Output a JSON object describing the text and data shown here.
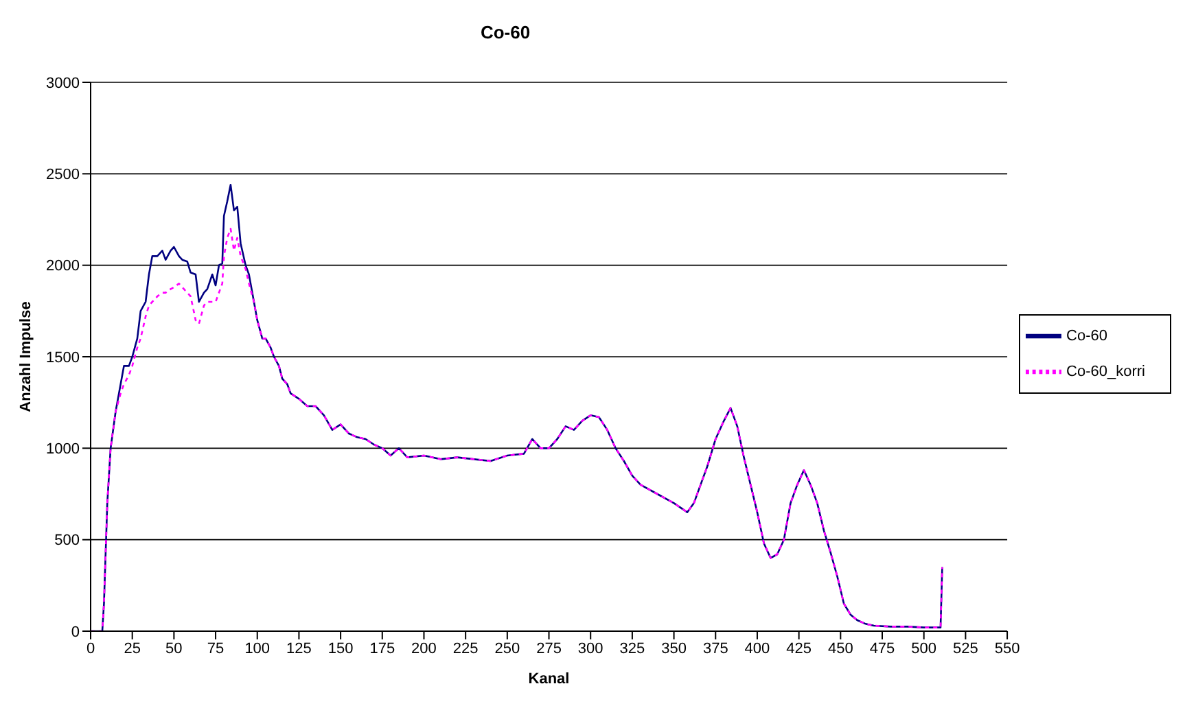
{
  "chart_data": {
    "type": "line",
    "title": "Co-60",
    "xlabel": "Kanal",
    "ylabel": "Anzahl Impulse",
    "x": [
      0,
      7,
      8,
      10,
      12,
      15,
      18,
      20,
      23,
      25,
      28,
      30,
      33,
      35,
      37,
      40,
      43,
      45,
      48,
      50,
      53,
      55,
      58,
      60,
      63,
      65,
      68,
      70,
      73,
      75,
      77,
      79,
      80,
      82,
      84,
      86,
      88,
      90,
      93,
      95,
      98,
      100,
      103,
      105,
      108,
      110,
      113,
      115,
      118,
      120,
      125,
      130,
      135,
      140,
      145,
      150,
      155,
      160,
      165,
      170,
      175,
      180,
      185,
      190,
      200,
      210,
      220,
      230,
      240,
      250,
      260,
      265,
      270,
      275,
      280,
      285,
      290,
      295,
      300,
      305,
      310,
      315,
      320,
      325,
      330,
      340,
      350,
      358,
      362,
      366,
      370,
      375,
      380,
      384,
      388,
      392,
      396,
      400,
      404,
      408,
      412,
      416,
      420,
      424,
      428,
      432,
      436,
      440,
      444,
      448,
      452,
      456,
      460,
      465,
      470,
      480,
      490,
      500,
      510,
      511
    ],
    "series": [
      {
        "name": "Co-60",
        "color": "#000080",
        "line_style": "solid",
        "values": [
          0,
          0,
          150,
          700,
          1000,
          1200,
          1350,
          1450,
          1450,
          1500,
          1600,
          1750,
          1800,
          1950,
          2050,
          2050,
          2080,
          2030,
          2080,
          2100,
          2050,
          2030,
          2020,
          1960,
          1950,
          1800,
          1850,
          1870,
          1950,
          1890,
          2000,
          2010,
          2270,
          2350,
          2440,
          2300,
          2320,
          2120,
          2000,
          1950,
          1800,
          1700,
          1600,
          1600,
          1550,
          1500,
          1450,
          1380,
          1350,
          1300,
          1270,
          1230,
          1230,
          1180,
          1100,
          1130,
          1080,
          1060,
          1050,
          1020,
          1000,
          960,
          1000,
          950,
          960,
          940,
          950,
          940,
          930,
          960,
          970,
          1050,
          1000,
          1000,
          1050,
          1120,
          1100,
          1150,
          1180,
          1170,
          1100,
          1000,
          930,
          850,
          800,
          750,
          700,
          650,
          700,
          800,
          900,
          1050,
          1150,
          1220,
          1120,
          950,
          800,
          650,
          480,
          400,
          420,
          500,
          700,
          800,
          880,
          800,
          700,
          550,
          430,
          300,
          150,
          90,
          60,
          40,
          30,
          25,
          25,
          20,
          20,
          350
        ]
      },
      {
        "name": "Co-60_korri",
        "color": "#ff00ff",
        "line_style": "dotted",
        "values": [
          0,
          0,
          150,
          700,
          1000,
          1200,
          1300,
          1350,
          1400,
          1450,
          1550,
          1600,
          1720,
          1780,
          1800,
          1830,
          1850,
          1850,
          1870,
          1880,
          1900,
          1880,
          1850,
          1830,
          1700,
          1680,
          1780,
          1800,
          1800,
          1800,
          1850,
          1900,
          2050,
          2150,
          2200,
          2080,
          2150,
          2050,
          1980,
          1900,
          1800,
          1700,
          1600,
          1600,
          1550,
          1500,
          1450,
          1380,
          1350,
          1300,
          1270,
          1230,
          1230,
          1180,
          1100,
          1130,
          1080,
          1060,
          1050,
          1020,
          1000,
          960,
          1000,
          950,
          960,
          940,
          950,
          940,
          930,
          960,
          970,
          1050,
          1000,
          1000,
          1050,
          1120,
          1100,
          1150,
          1180,
          1170,
          1100,
          1000,
          930,
          850,
          800,
          750,
          700,
          650,
          700,
          800,
          900,
          1050,
          1150,
          1220,
          1120,
          950,
          800,
          650,
          480,
          400,
          420,
          500,
          700,
          800,
          880,
          800,
          700,
          550,
          430,
          300,
          150,
          90,
          60,
          40,
          30,
          25,
          25,
          20,
          20,
          350
        ]
      }
    ],
    "xlim": [
      0,
      550
    ],
    "xticks": [
      0,
      25,
      50,
      75,
      100,
      125,
      150,
      175,
      200,
      225,
      250,
      275,
      300,
      325,
      350,
      375,
      400,
      425,
      450,
      475,
      500,
      525,
      550
    ],
    "ylim": [
      0,
      3000
    ],
    "yticks": [
      0,
      500,
      1000,
      1500,
      2000,
      2500,
      3000
    ],
    "grid": "y",
    "legend": "right",
    "marker": "none"
  }
}
